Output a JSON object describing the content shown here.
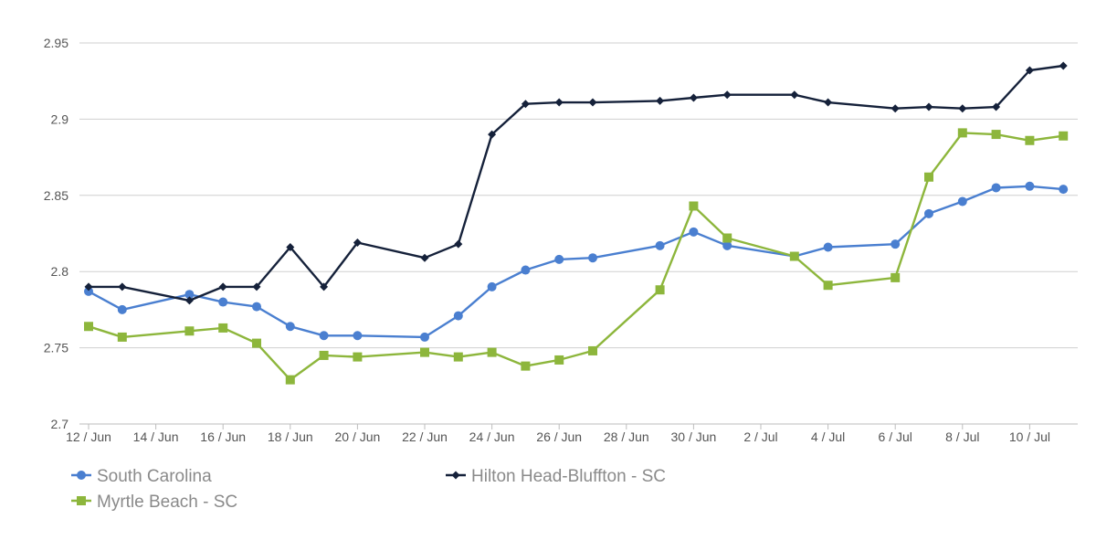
{
  "chart_data": {
    "type": "line",
    "ylim": [
      2.7,
      2.95
    ],
    "y_ticks": [
      2.7,
      2.75,
      2.8,
      2.85,
      2.9,
      2.95
    ],
    "y_tick_labels": [
      "2.7",
      "2.75",
      "2.8",
      "2.85",
      "2.9",
      "2.95"
    ],
    "x_range": [
      "2019-06-12",
      "2019-07-11"
    ],
    "x_tick_labels": [
      "12 / Jun",
      "14 / Jun",
      "16 / Jun",
      "18 / Jun",
      "20 / Jun",
      "22 / Jun",
      "24 / Jun",
      "26 / Jun",
      "28 / Jun",
      "30 / Jun",
      "2 / Jul",
      "4 / Jul",
      "6 / Jul",
      "8 / Jul",
      "10 / Jul"
    ],
    "x_ticks": [
      "2019-06-12",
      "2019-06-14",
      "2019-06-16",
      "2019-06-18",
      "2019-06-20",
      "2019-06-22",
      "2019-06-24",
      "2019-06-26",
      "2019-06-28",
      "2019-06-30",
      "2019-07-02",
      "2019-07-04",
      "2019-07-06",
      "2019-07-08",
      "2019-07-10"
    ],
    "grid": true,
    "legend_position": "bottom",
    "series": [
      {
        "name": "South Carolina",
        "color": "#4a7fd0",
        "marker": "circle",
        "points": [
          [
            "2019-06-12",
            2.787
          ],
          [
            "2019-06-13",
            2.775
          ],
          [
            "2019-06-15",
            2.785
          ],
          [
            "2019-06-16",
            2.78
          ],
          [
            "2019-06-17",
            2.777
          ],
          [
            "2019-06-18",
            2.764
          ],
          [
            "2019-06-19",
            2.758
          ],
          [
            "2019-06-20",
            2.758
          ],
          [
            "2019-06-22",
            2.757
          ],
          [
            "2019-06-23",
            2.771
          ],
          [
            "2019-06-24",
            2.79
          ],
          [
            "2019-06-25",
            2.801
          ],
          [
            "2019-06-26",
            2.808
          ],
          [
            "2019-06-27",
            2.809
          ],
          [
            "2019-06-29",
            2.817
          ],
          [
            "2019-06-30",
            2.826
          ],
          [
            "2019-07-01",
            2.817
          ],
          [
            "2019-07-03",
            2.81
          ],
          [
            "2019-07-04",
            2.816
          ],
          [
            "2019-07-06",
            2.818
          ],
          [
            "2019-07-07",
            2.838
          ],
          [
            "2019-07-08",
            2.846
          ],
          [
            "2019-07-09",
            2.855
          ],
          [
            "2019-07-10",
            2.856
          ],
          [
            "2019-07-11",
            2.854
          ]
        ]
      },
      {
        "name": "Hilton Head-Bluffton - SC",
        "color": "#15213a",
        "marker": "diamond",
        "points": [
          [
            "2019-06-12",
            2.79
          ],
          [
            "2019-06-13",
            2.79
          ],
          [
            "2019-06-15",
            2.781
          ],
          [
            "2019-06-16",
            2.79
          ],
          [
            "2019-06-17",
            2.79
          ],
          [
            "2019-06-18",
            2.816
          ],
          [
            "2019-06-19",
            2.79
          ],
          [
            "2019-06-20",
            2.819
          ],
          [
            "2019-06-22",
            2.809
          ],
          [
            "2019-06-23",
            2.818
          ],
          [
            "2019-06-24",
            2.89
          ],
          [
            "2019-06-25",
            2.91
          ],
          [
            "2019-06-26",
            2.911
          ],
          [
            "2019-06-27",
            2.911
          ],
          [
            "2019-06-29",
            2.912
          ],
          [
            "2019-06-30",
            2.914
          ],
          [
            "2019-07-01",
            2.916
          ],
          [
            "2019-07-03",
            2.916
          ],
          [
            "2019-07-04",
            2.911
          ],
          [
            "2019-07-06",
            2.907
          ],
          [
            "2019-07-07",
            2.908
          ],
          [
            "2019-07-08",
            2.907
          ],
          [
            "2019-07-09",
            2.908
          ],
          [
            "2019-07-10",
            2.932
          ],
          [
            "2019-07-11",
            2.935
          ]
        ]
      },
      {
        "name": "Myrtle Beach - SC",
        "color": "#8db63c",
        "marker": "square",
        "points": [
          [
            "2019-06-12",
            2.764
          ],
          [
            "2019-06-13",
            2.757
          ],
          [
            "2019-06-15",
            2.761
          ],
          [
            "2019-06-16",
            2.763
          ],
          [
            "2019-06-17",
            2.753
          ],
          [
            "2019-06-18",
            2.729
          ],
          [
            "2019-06-19",
            2.745
          ],
          [
            "2019-06-20",
            2.744
          ],
          [
            "2019-06-22",
            2.747
          ],
          [
            "2019-06-23",
            2.744
          ],
          [
            "2019-06-24",
            2.747
          ],
          [
            "2019-06-25",
            2.738
          ],
          [
            "2019-06-26",
            2.742
          ],
          [
            "2019-06-27",
            2.748
          ],
          [
            "2019-06-29",
            2.788
          ],
          [
            "2019-06-30",
            2.843
          ],
          [
            "2019-07-01",
            2.822
          ],
          [
            "2019-07-03",
            2.81
          ],
          [
            "2019-07-04",
            2.791
          ],
          [
            "2019-07-06",
            2.796
          ],
          [
            "2019-07-07",
            2.862
          ],
          [
            "2019-07-08",
            2.891
          ],
          [
            "2019-07-09",
            2.89
          ],
          [
            "2019-07-10",
            2.886
          ],
          [
            "2019-07-11",
            2.889
          ]
        ]
      }
    ]
  }
}
